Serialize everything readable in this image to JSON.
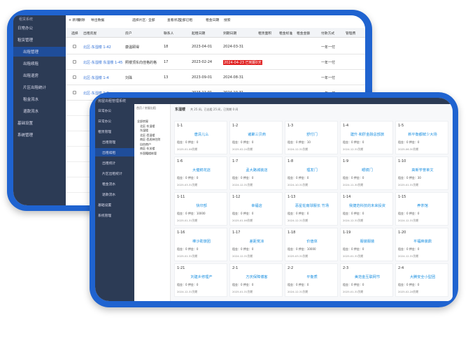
{
  "back": {
    "brand": "租赁系统",
    "menu": [
      "日常办公",
      "租赁管理",
      "出租管理",
      "出租续租",
      "出租退房",
      "片区出租统计",
      "租金流水",
      "退款流水",
      "基础设置",
      "系统管理"
    ],
    "toolbar": [
      "+ 新增",
      "删除",
      "导出数据",
      "选择片区:",
      "全部",
      "查看状态",
      "全部已租",
      "租金日期",
      "搜索"
    ],
    "columns": [
      "选择",
      "出租房屋",
      "房户",
      "联系人",
      "起租日期",
      "到期日期",
      "租赁面积",
      "租金标准",
      "租金金额",
      "付款方式",
      "管理费"
    ],
    "rows": [
      [
        "北区-东湿楼 1-42",
        "康温颐得",
        "18",
        "2023-04-01",
        "2024-03-31",
        "一年一付"
      ],
      [
        "北区-东湿楼 东湿楼 1-45",
        "照楼顶东向佳格的格",
        "17",
        "2023-02-24",
        "2024-04-23 已到期0天",
        "一年一付"
      ],
      [
        "北区-东湿楼 1-4",
        "刘珠",
        "13",
        "2023-09-01",
        "2024-08-31",
        "一年一付"
      ],
      [
        "北区-东湿楼 1-2",
        "",
        "",
        "2023-11-01",
        "2024-10-31",
        "一年一付"
      ]
    ]
  },
  "front": {
    "title": "房屋出租管理系统",
    "menu": [
      "日常办公",
      "日常办公",
      "租赁管理",
      "出租管理",
      "出租续租",
      "出租统计",
      "片区出租统计",
      "租金流水",
      "退款流水",
      "基础设置",
      "系统管理"
    ],
    "tree": [
      "全部房屋",
      "北区-东湿楼",
      "东湿楼",
      "北区-西湿楼",
      "南区-西虎林住院",
      "自由商户",
      "南区-东关楼",
      "外国籍楼栋管"
    ],
    "breadcrumb": "首页 / 房屋出租",
    "tab": "东湿楼",
    "summary": "共 25 间，已出租 25 间，已到期 0 间",
    "cards": [
      {
        "id": "1-1",
        "name": "唐清儿么",
        "info": "租金：0  押金：0",
        "date": "2025.01.06到期"
      },
      {
        "id": "1-2",
        "name": "诸聚三贝商",
        "info": "租金：0  押金：0",
        "date": "2025.02.24到期"
      },
      {
        "id": "1-3",
        "name": "舒付门",
        "info": "租金：0  押金：10",
        "date": "2024.12.31到期"
      },
      {
        "id": "1-4",
        "name": "建升·和肝金融总部旅",
        "info": "租金：0  押金：0",
        "date": "2024.12.31到期"
      },
      {
        "id": "1-5",
        "name": "新平衡都鲜少大场",
        "info": "租金：0  押金：0",
        "date": "2025.06.30到期"
      },
      {
        "id": "1-6",
        "name": "大健鲜花店",
        "info": "租金：0  押金：0",
        "date": "2025.03.31到期"
      },
      {
        "id": "1-7",
        "name": "孟大路城装店",
        "info": "租金：0  押金：0",
        "date": "2024.12.31到期"
      },
      {
        "id": "1-8",
        "name": "理发门",
        "info": "租金：0  押金：0",
        "date": "2024.10.31到期"
      },
      {
        "id": "1-9",
        "name": "眼镜门",
        "info": "租金：0  押金：0",
        "date": "2024.11.30到期"
      },
      {
        "id": "1-10",
        "name": "高新学誉单文",
        "info": "租金：0  押金：30",
        "date": "2025.01.31到期"
      },
      {
        "id": "1-11",
        "name": "快印部",
        "info": "租金：0  押金：10000",
        "date": "2025.01.31到期"
      },
      {
        "id": "1-12",
        "name": "幸福店",
        "info": "租金：0  押金：0",
        "date": "2025.01.06到期"
      },
      {
        "id": "1-13",
        "name": "恶星佐南球服长 竹场",
        "info": "租金：0  押金：0",
        "date": "2024.12.31到期"
      },
      {
        "id": "1-14",
        "name": "我捷范科技的未来投资",
        "info": "租金：0  押金：0",
        "date": "2024.12.31到期"
      },
      {
        "id": "1-15",
        "name": "养茶馆",
        "info": "租金：0  押金：0",
        "date": "2024.12.31到期"
      },
      {
        "id": "1-16",
        "name": "棒沙助旅团",
        "info": "租金：0  押金：0",
        "date": "2025.01.31到期"
      },
      {
        "id": "1-17",
        "name": "差距荒凉",
        "info": "租金：0  押金：0",
        "date": "2024.12.31到期"
      },
      {
        "id": "1-18",
        "name": "价值体",
        "info": "租金：0  押金：10000",
        "date": "2025.03.31到期"
      },
      {
        "id": "1-19",
        "name": "服装服装",
        "info": "租金：0  押金：0",
        "date": "2025.01.31到期"
      },
      {
        "id": "1-20",
        "name": "平福麻装鼎",
        "info": "租金：0  押金：0",
        "date": "2024.12.31到期"
      },
      {
        "id": "1-21",
        "name": "刘建乡修理产",
        "info": "租金：0  押金：0",
        "date": "2024.12.31到期"
      },
      {
        "id": "2-1",
        "name": "方庆保障博客",
        "info": "租金：0  押金：0",
        "date": "2025.01.31到期"
      },
      {
        "id": "2-2",
        "name": "平衡质",
        "info": "租金：0  押金：0",
        "date": "2024.12.31到期"
      },
      {
        "id": "2-3",
        "name": "美范金互联网节",
        "info": "租金：0  押金：0",
        "date": "2025.01.31到期"
      },
      {
        "id": "2-4",
        "name": "大腾安全小型团",
        "info": "租金：0  押金：0",
        "date": "2025.02.28到期"
      }
    ]
  }
}
